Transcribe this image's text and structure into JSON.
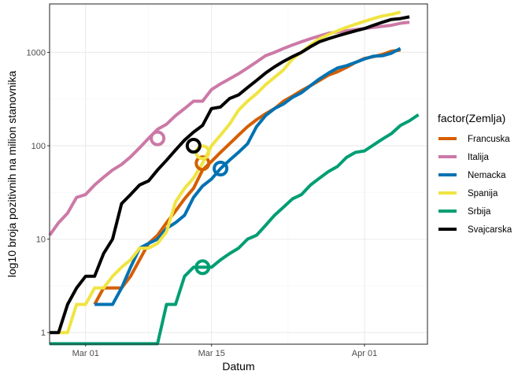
{
  "chart_data": {
    "type": "line",
    "xlabel": "Datum",
    "ylabel": "log10 broja pozitivnih na milion stanovnika",
    "y_scale": "log10",
    "ylim": [
      0.75,
      3300
    ],
    "x_range": [
      "2020-02-26",
      "2020-04-08"
    ],
    "x_ticks": [
      {
        "date": "2020-03-01",
        "label": "Mar 01"
      },
      {
        "date": "2020-03-15",
        "label": "Mar 15"
      },
      {
        "date": "2020-04-01",
        "label": "Apr 01"
      }
    ],
    "y_ticks": [
      {
        "value": 1,
        "label": "1"
      },
      {
        "value": 10,
        "label": "10"
      },
      {
        "value": 100,
        "label": "100"
      },
      {
        "value": 1000,
        "label": "1000"
      }
    ],
    "grid": true,
    "legend": {
      "title": "factor(Zemlja)",
      "position": "right"
    },
    "series": [
      {
        "name": "Francuska",
        "color": "#D55E00",
        "marker": {
          "date": "2020-03-14",
          "value": 65
        },
        "points": [
          [
            "2020-03-02",
            2
          ],
          [
            "2020-03-03",
            3
          ],
          [
            "2020-03-04",
            3
          ],
          [
            "2020-03-05",
            3
          ],
          [
            "2020-03-06",
            4
          ],
          [
            "2020-03-07",
            6
          ],
          [
            "2020-03-08",
            9
          ],
          [
            "2020-03-09",
            11
          ],
          [
            "2020-03-10",
            15
          ],
          [
            "2020-03-11",
            20
          ],
          [
            "2020-03-12",
            27
          ],
          [
            "2020-03-13",
            35
          ],
          [
            "2020-03-14",
            55
          ],
          [
            "2020-03-15",
            68
          ],
          [
            "2020-03-16",
            85
          ],
          [
            "2020-03-17",
            105
          ],
          [
            "2020-03-18",
            130
          ],
          [
            "2020-03-19",
            160
          ],
          [
            "2020-03-20",
            190
          ],
          [
            "2020-03-21",
            220
          ],
          [
            "2020-03-22",
            250
          ],
          [
            "2020-03-23",
            300
          ],
          [
            "2020-03-24",
            340
          ],
          [
            "2020-03-25",
            390
          ],
          [
            "2020-03-26",
            440
          ],
          [
            "2020-03-27",
            500
          ],
          [
            "2020-03-28",
            570
          ],
          [
            "2020-03-29",
            620
          ],
          [
            "2020-03-30",
            690
          ],
          [
            "2020-03-31",
            780
          ],
          [
            "2020-04-01",
            860
          ],
          [
            "2020-04-02",
            900
          ],
          [
            "2020-04-03",
            950
          ],
          [
            "2020-04-04",
            1030
          ],
          [
            "2020-04-05",
            1060
          ]
        ]
      },
      {
        "name": "Italija",
        "color": "#CC79A7",
        "marker": {
          "date": "2020-03-09",
          "value": 120
        },
        "points": [
          [
            "2020-02-26",
            11
          ],
          [
            "2020-02-27",
            15
          ],
          [
            "2020-02-28",
            19
          ],
          [
            "2020-02-29",
            28
          ],
          [
            "2020-03-01",
            30
          ],
          [
            "2020-03-02",
            38
          ],
          [
            "2020-03-03",
            46
          ],
          [
            "2020-03-04",
            55
          ],
          [
            "2020-03-05",
            63
          ],
          [
            "2020-03-06",
            76
          ],
          [
            "2020-03-07",
            95
          ],
          [
            "2020-03-08",
            120
          ],
          [
            "2020-03-09",
            150
          ],
          [
            "2020-03-10",
            170
          ],
          [
            "2020-03-11",
            210
          ],
          [
            "2020-03-12",
            250
          ],
          [
            "2020-03-13",
            300
          ],
          [
            "2020-03-14",
            300
          ],
          [
            "2020-03-15",
            400
          ],
          [
            "2020-03-16",
            460
          ],
          [
            "2020-03-17",
            520
          ],
          [
            "2020-03-18",
            590
          ],
          [
            "2020-03-19",
            680
          ],
          [
            "2020-03-20",
            790
          ],
          [
            "2020-03-21",
            920
          ],
          [
            "2020-03-22",
            1000
          ],
          [
            "2020-03-23",
            1100
          ],
          [
            "2020-03-24",
            1200
          ],
          [
            "2020-03-25",
            1300
          ],
          [
            "2020-03-26",
            1400
          ],
          [
            "2020-03-27",
            1500
          ],
          [
            "2020-03-28",
            1600
          ],
          [
            "2020-03-29",
            1650
          ],
          [
            "2020-03-30",
            1700
          ],
          [
            "2020-03-31",
            1750
          ],
          [
            "2020-04-01",
            1800
          ],
          [
            "2020-04-02",
            1850
          ],
          [
            "2020-04-03",
            1900
          ],
          [
            "2020-04-04",
            1950
          ],
          [
            "2020-04-05",
            2050
          ],
          [
            "2020-04-06",
            2100
          ]
        ]
      },
      {
        "name": "Nemacka",
        "color": "#0072B2",
        "marker": {
          "date": "2020-03-16",
          "value": 57
        },
        "points": [
          [
            "2020-03-02",
            2
          ],
          [
            "2020-03-03",
            2
          ],
          [
            "2020-03-04",
            2
          ],
          [
            "2020-03-05",
            3
          ],
          [
            "2020-03-06",
            5
          ],
          [
            "2020-03-07",
            8
          ],
          [
            "2020-03-08",
            9
          ],
          [
            "2020-03-09",
            10
          ],
          [
            "2020-03-10",
            13
          ],
          [
            "2020-03-11",
            15
          ],
          [
            "2020-03-12",
            18
          ],
          [
            "2020-03-13",
            28
          ],
          [
            "2020-03-14",
            37
          ],
          [
            "2020-03-15",
            44
          ],
          [
            "2020-03-16",
            57
          ],
          [
            "2020-03-17",
            70
          ],
          [
            "2020-03-18",
            85
          ],
          [
            "2020-03-19",
            105
          ],
          [
            "2020-03-20",
            160
          ],
          [
            "2020-03-21",
            210
          ],
          [
            "2020-03-22",
            250
          ],
          [
            "2020-03-23",
            280
          ],
          [
            "2020-03-24",
            330
          ],
          [
            "2020-03-25",
            370
          ],
          [
            "2020-03-26",
            440
          ],
          [
            "2020-03-27",
            520
          ],
          [
            "2020-03-28",
            600
          ],
          [
            "2020-03-29",
            680
          ],
          [
            "2020-03-30",
            720
          ],
          [
            "2020-03-31",
            780
          ],
          [
            "2020-04-01",
            850
          ],
          [
            "2020-04-02",
            910
          ],
          [
            "2020-04-03",
            920
          ],
          [
            "2020-04-04",
            980
          ],
          [
            "2020-04-05",
            1100
          ]
        ]
      },
      {
        "name": "Spanija",
        "color": "#F0E442",
        "marker": {
          "date": "2020-03-14",
          "value": 85
        },
        "points": [
          [
            "2020-02-27",
            1
          ],
          [
            "2020-02-28",
            1
          ],
          [
            "2020-02-29",
            2
          ],
          [
            "2020-03-01",
            2
          ],
          [
            "2020-03-02",
            3
          ],
          [
            "2020-03-03",
            3
          ],
          [
            "2020-03-04",
            4
          ],
          [
            "2020-03-05",
            5
          ],
          [
            "2020-03-06",
            6
          ],
          [
            "2020-03-07",
            8
          ],
          [
            "2020-03-08",
            8
          ],
          [
            "2020-03-09",
            9
          ],
          [
            "2020-03-10",
            12
          ],
          [
            "2020-03-11",
            25
          ],
          [
            "2020-03-12",
            35
          ],
          [
            "2020-03-13",
            45
          ],
          [
            "2020-03-14",
            65
          ],
          [
            "2020-03-15",
            100
          ],
          [
            "2020-03-16",
            130
          ],
          [
            "2020-03-17",
            170
          ],
          [
            "2020-03-18",
            240
          ],
          [
            "2020-03-19",
            300
          ],
          [
            "2020-03-20",
            360
          ],
          [
            "2020-03-21",
            450
          ],
          [
            "2020-03-22",
            540
          ],
          [
            "2020-03-23",
            650
          ],
          [
            "2020-03-24",
            850
          ],
          [
            "2020-03-25",
            1000
          ],
          [
            "2020-03-26",
            1200
          ],
          [
            "2020-03-27",
            1400
          ],
          [
            "2020-03-28",
            1550
          ],
          [
            "2020-03-29",
            1700
          ],
          [
            "2020-03-30",
            1850
          ],
          [
            "2020-03-31",
            2000
          ],
          [
            "2020-04-01",
            2150
          ],
          [
            "2020-04-02",
            2300
          ],
          [
            "2020-04-03",
            2450
          ],
          [
            "2020-04-04",
            2550
          ],
          [
            "2020-04-05",
            2700
          ]
        ]
      },
      {
        "name": "Srbija",
        "color": "#009E73",
        "marker": {
          "date": "2020-03-14",
          "value": 5
        },
        "points": [
          [
            "2020-02-26",
            0.76
          ],
          [
            "2020-03-09",
            0.76
          ],
          [
            "2020-03-10",
            2
          ],
          [
            "2020-03-11",
            2
          ],
          [
            "2020-03-12",
            4
          ],
          [
            "2020-03-13",
            5
          ],
          [
            "2020-03-14",
            5
          ],
          [
            "2020-03-15",
            5
          ],
          [
            "2020-03-16",
            6
          ],
          [
            "2020-03-17",
            7
          ],
          [
            "2020-03-18",
            8
          ],
          [
            "2020-03-19",
            10
          ],
          [
            "2020-03-20",
            11
          ],
          [
            "2020-03-21",
            14
          ],
          [
            "2020-03-22",
            18
          ],
          [
            "2020-03-23",
            22
          ],
          [
            "2020-03-24",
            27
          ],
          [
            "2020-03-25",
            30
          ],
          [
            "2020-03-26",
            38
          ],
          [
            "2020-03-27",
            45
          ],
          [
            "2020-03-28",
            53
          ],
          [
            "2020-03-29",
            60
          ],
          [
            "2020-03-30",
            75
          ],
          [
            "2020-03-31",
            85
          ],
          [
            "2020-04-01",
            88
          ],
          [
            "2020-04-02",
            102
          ],
          [
            "2020-04-03",
            118
          ],
          [
            "2020-04-04",
            135
          ],
          [
            "2020-04-05",
            165
          ],
          [
            "2020-04-06",
            185
          ],
          [
            "2020-04-07",
            215
          ]
        ]
      },
      {
        "name": "Svajcarska",
        "color": "#000000",
        "marker": {
          "date": "2020-03-13",
          "value": 100
        },
        "points": [
          [
            "2020-02-26",
            1
          ],
          [
            "2020-02-27",
            1
          ],
          [
            "2020-02-28",
            2
          ],
          [
            "2020-02-29",
            3
          ],
          [
            "2020-03-01",
            4
          ],
          [
            "2020-03-02",
            4
          ],
          [
            "2020-03-03",
            7
          ],
          [
            "2020-03-04",
            10
          ],
          [
            "2020-03-05",
            24
          ],
          [
            "2020-03-06",
            30
          ],
          [
            "2020-03-07",
            38
          ],
          [
            "2020-03-08",
            42
          ],
          [
            "2020-03-09",
            55
          ],
          [
            "2020-03-10",
            70
          ],
          [
            "2020-03-11",
            90
          ],
          [
            "2020-03-12",
            115
          ],
          [
            "2020-03-13",
            140
          ],
          [
            "2020-03-14",
            165
          ],
          [
            "2020-03-15",
            250
          ],
          [
            "2020-03-16",
            260
          ],
          [
            "2020-03-17",
            320
          ],
          [
            "2020-03-18",
            350
          ],
          [
            "2020-03-19",
            420
          ],
          [
            "2020-03-20",
            500
          ],
          [
            "2020-03-21",
            600
          ],
          [
            "2020-03-22",
            700
          ],
          [
            "2020-03-23",
            800
          ],
          [
            "2020-03-24",
            900
          ],
          [
            "2020-03-25",
            1000
          ],
          [
            "2020-03-26",
            1150
          ],
          [
            "2020-03-27",
            1300
          ],
          [
            "2020-03-28",
            1400
          ],
          [
            "2020-03-29",
            1500
          ],
          [
            "2020-03-30",
            1600
          ],
          [
            "2020-03-31",
            1700
          ],
          [
            "2020-04-01",
            1800
          ],
          [
            "2020-04-02",
            1950
          ],
          [
            "2020-04-03",
            2100
          ],
          [
            "2020-04-04",
            2250
          ],
          [
            "2020-04-05",
            2300
          ],
          [
            "2020-04-06",
            2400
          ]
        ]
      }
    ]
  }
}
